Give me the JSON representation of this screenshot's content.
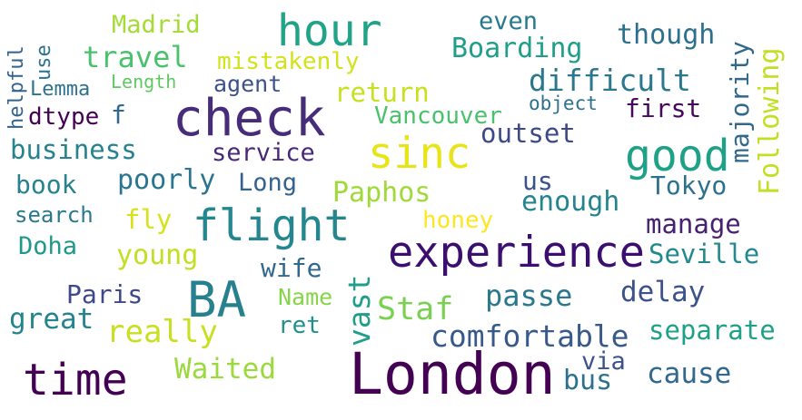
{
  "words": [
    {
      "text": "Madrid",
      "color": "#a5db36"
    },
    {
      "text": "hour",
      "color": "#20a386"
    },
    {
      "text": "even",
      "color": "#2a788e"
    },
    {
      "text": "though",
      "color": "#2d708e"
    },
    {
      "text": "Boarding",
      "color": "#1f9e89"
    },
    {
      "text": "travel",
      "color": "#4ac16d"
    },
    {
      "text": "mistakenly",
      "color": "#d2e21b"
    },
    {
      "text": "Length",
      "color": "#5ec962"
    },
    {
      "text": "Lemma",
      "color": "#2c728e"
    },
    {
      "text": "agent",
      "color": "#3b528b"
    },
    {
      "text": "difficult",
      "color": "#2a788e"
    },
    {
      "text": "return",
      "color": "#c8e020"
    },
    {
      "text": "check",
      "color": "#472c7a"
    },
    {
      "text": "object",
      "color": "#2c728e"
    },
    {
      "text": "first",
      "color": "#46085c"
    },
    {
      "text": "Vancouver",
      "color": "#4ac16d"
    },
    {
      "text": "dtype",
      "color": "#440154"
    },
    {
      "text": "f",
      "color": "#31688e"
    },
    {
      "text": "outset",
      "color": "#3e4989"
    },
    {
      "text": "sinc",
      "color": "#e7e419"
    },
    {
      "text": "good",
      "color": "#1fa187"
    },
    {
      "text": "business",
      "color": "#26828e"
    },
    {
      "text": "service",
      "color": "#482878"
    },
    {
      "text": "book",
      "color": "#26828e"
    },
    {
      "text": "poorly",
      "color": "#2a768e"
    },
    {
      "text": "Long",
      "color": "#33638d"
    },
    {
      "text": "Paphos",
      "color": "#a0da39"
    },
    {
      "text": "us",
      "color": "#3b528b"
    },
    {
      "text": "Tokyo",
      "color": "#2c728e"
    },
    {
      "text": "enough",
      "color": "#25858e"
    },
    {
      "text": "search",
      "color": "#2a788e"
    },
    {
      "text": "fly",
      "color": "#d8e219"
    },
    {
      "text": "flight",
      "color": "#24868e"
    },
    {
      "text": "honey",
      "color": "#fde725"
    },
    {
      "text": "manage",
      "color": "#482173"
    },
    {
      "text": "Doha",
      "color": "#1f988b"
    },
    {
      "text": "experience",
      "color": "#3b0f70"
    },
    {
      "text": "young",
      "color": "#c2df23"
    },
    {
      "text": "Seville",
      "color": "#23898e"
    },
    {
      "text": "wife",
      "color": "#31688e"
    },
    {
      "text": "Paris",
      "color": "#3e4989"
    },
    {
      "text": "BA",
      "color": "#27808e"
    },
    {
      "text": "Name",
      "color": "#86d549"
    },
    {
      "text": "passe",
      "color": "#2a788e"
    },
    {
      "text": "delay",
      "color": "#3b528b"
    },
    {
      "text": "great",
      "color": "#25838e"
    },
    {
      "text": "ret",
      "color": "#21918c"
    },
    {
      "text": "Staf",
      "color": "#7ad151"
    },
    {
      "text": "really",
      "color": "#c8e020"
    },
    {
      "text": "comfortable",
      "color": "#38598c"
    },
    {
      "text": "separate",
      "color": "#1fa187"
    },
    {
      "text": "via",
      "color": "#3b528b"
    },
    {
      "text": "time",
      "color": "#440154"
    },
    {
      "text": "Waited",
      "color": "#9bd93c"
    },
    {
      "text": "London",
      "color": "#440154"
    },
    {
      "text": "bus",
      "color": "#2c728e"
    },
    {
      "text": "cause",
      "color": "#31688e"
    },
    {
      "text": "use",
      "color": "#2c728e"
    },
    {
      "text": "helpful",
      "color": "#33638d"
    },
    {
      "text": "vast",
      "color": "#1f9e89"
    },
    {
      "text": "majority",
      "color": "#31688e"
    },
    {
      "text": "Following",
      "color": "#c2df23"
    }
  ]
}
